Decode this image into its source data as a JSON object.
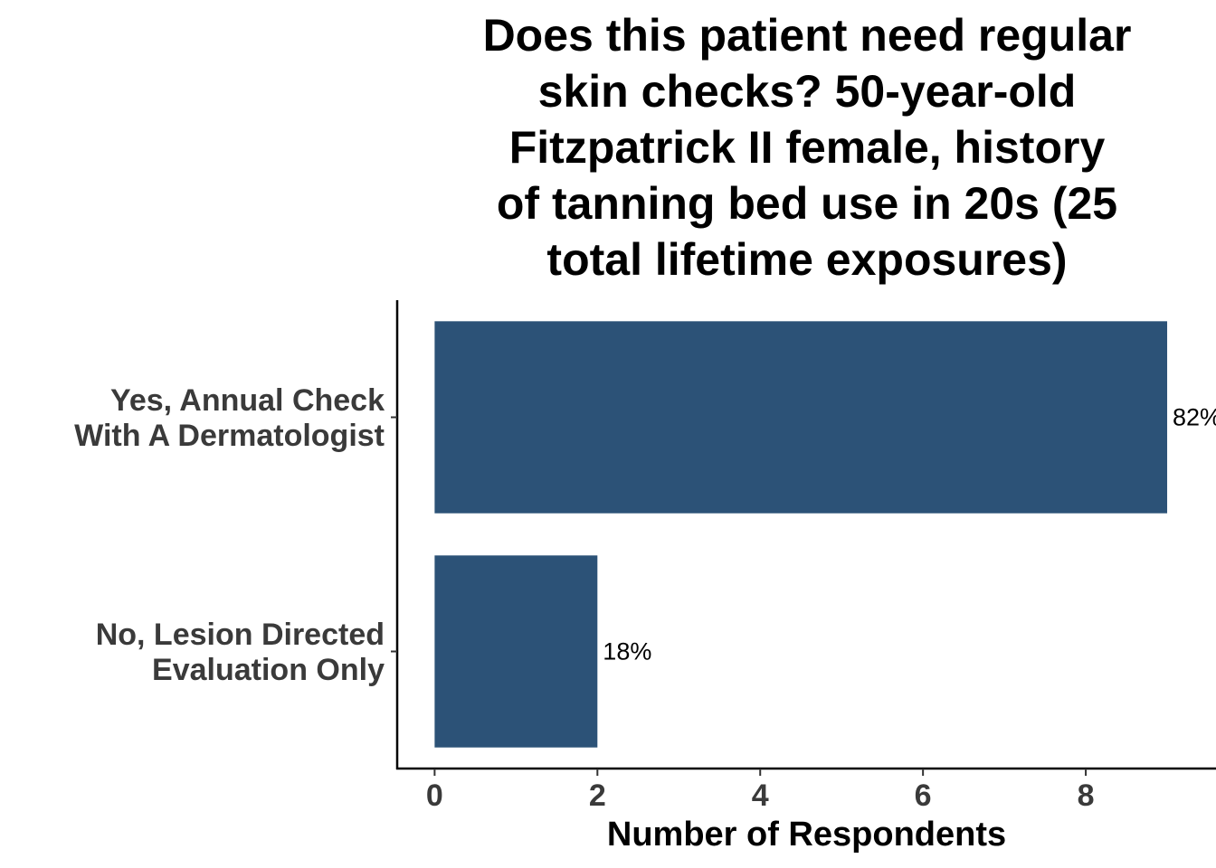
{
  "chart_data": {
    "type": "bar",
    "orientation": "horizontal",
    "title_lines": [
      "Does this patient need regular",
      "skin checks? 50-year-old",
      "Fitzpatrick II female, history",
      "of tanning bed use in 20s (25",
      "total lifetime exposures)"
    ],
    "categories": [
      [
        "Yes, Annual Check",
        "With A Dermatologist"
      ],
      [
        "No, Lesion Directed",
        "Evaluation Only"
      ]
    ],
    "values": [
      9,
      2
    ],
    "data_labels": [
      "82%",
      "18%"
    ],
    "xlabel": "Number of Respondents",
    "ylabel": "",
    "xlim": [
      -0.46,
      9.6
    ],
    "xticks": [
      0,
      2,
      4,
      6,
      8
    ],
    "grid": false,
    "legend": "none",
    "bar_color": "#2c5277"
  }
}
